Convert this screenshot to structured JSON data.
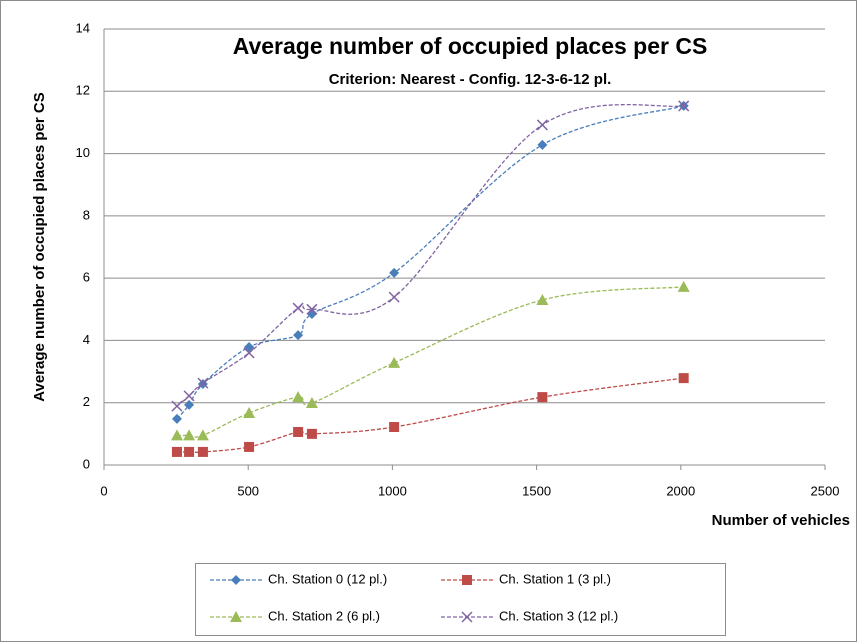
{
  "chart_data": {
    "type": "line",
    "smooth": true,
    "title": "Average number of occupied places per CS",
    "subtitle": "Criterion: Nearest - Config. 12-3-6-12  pl.",
    "x_label": "Number of vehicles",
    "y_label": "Average number of occupied places per CS",
    "xlim": [
      0,
      2500
    ],
    "xticks": [
      0,
      500,
      1000,
      1500,
      2000,
      2500
    ],
    "ylim": [
      0,
      14
    ],
    "yticks": [
      0,
      2,
      4,
      6,
      8,
      10,
      12,
      14
    ],
    "grid": true,
    "legend": "bottom",
    "series": [
      {
        "name": "Ch. Station 0 (12 pl.)",
        "color": "#4a7ebb",
        "marker": "diamond",
        "x": [
          253,
          295,
          343,
          503,
          673,
          721,
          1006,
          1520,
          2010
        ],
        "values": [
          1.48,
          1.93,
          2.6,
          3.79,
          4.17,
          4.85,
          6.17,
          10.28,
          11.53
        ]
      },
      {
        "name": "Ch. Station 1 (3 pl.)",
        "color": "#be4b48",
        "marker": "square",
        "x": [
          253,
          295,
          343,
          503,
          673,
          721,
          1006,
          1520,
          2010
        ],
        "values": [
          0.42,
          0.42,
          0.42,
          0.58,
          1.06,
          1.0,
          1.22,
          2.18,
          2.79
        ]
      },
      {
        "name": "Ch. Station 2 (6 pl.)",
        "color": "#9bbb59",
        "marker": "triangle",
        "x": [
          253,
          295,
          343,
          503,
          673,
          721,
          1006,
          1520,
          2010
        ],
        "values": [
          0.95,
          0.95,
          0.95,
          1.67,
          2.18,
          1.99,
          3.28,
          5.3,
          5.72
        ]
      },
      {
        "name": "Ch. Station 3 (12 pl.)",
        "color": "#8064a2",
        "marker": "x",
        "x": [
          253,
          295,
          343,
          503,
          673,
          721,
          1006,
          1520,
          2010
        ],
        "values": [
          1.89,
          2.22,
          2.63,
          3.6,
          5.04,
          5.0,
          5.39,
          10.92,
          11.53
        ]
      }
    ]
  }
}
